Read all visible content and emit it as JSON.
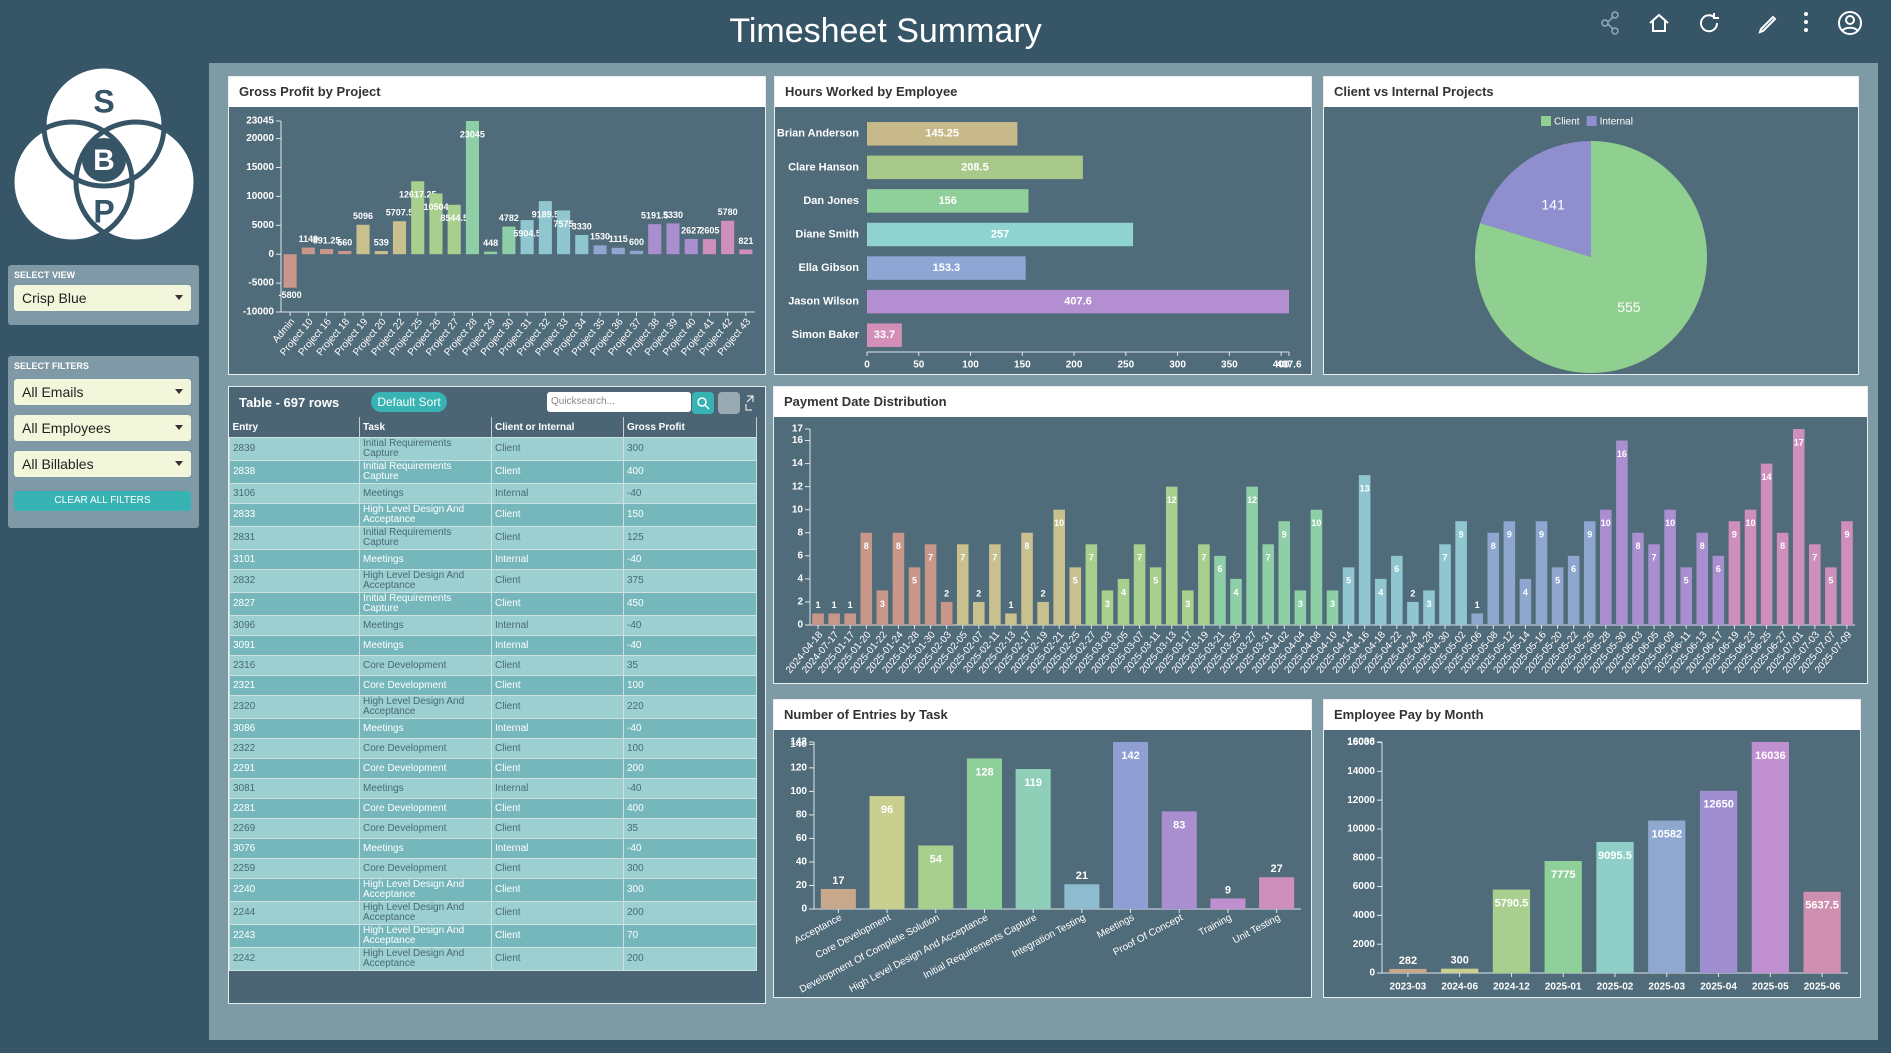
{
  "header": {
    "title": "Timesheet Summary"
  },
  "sidebar": {
    "logo": [
      "S",
      "B",
      "P"
    ],
    "view_label": "SELECT VIEW",
    "view": "Crisp Blue",
    "filters_label": "SELECT FILTERS",
    "filters": [
      "All Emails",
      "All Employees",
      "All Billables"
    ],
    "clear": "CLEAR ALL FILTERS"
  },
  "chart_data": [
    {
      "type": "bar",
      "title": "Gross Profit by Project",
      "categories": [
        "Admin",
        "Project 10",
        "Project 16",
        "Project 18",
        "Project 19",
        "Project 20",
        "Project 22",
        "Project 25",
        "Project 26",
        "Project 27",
        "Project 28",
        "Project 29",
        "Project 30",
        "Project 31",
        "Project 32",
        "Project 33",
        "Project 34",
        "Project 35",
        "Project 36",
        "Project 37",
        "Project 38",
        "Project 39",
        "Project 40",
        "Project 41",
        "Project 42",
        "Project 43"
      ],
      "values": [
        -5800,
        1149,
        891.25,
        560,
        5096,
        539,
        5707.5,
        12617.25,
        10504,
        8544.5,
        23045,
        448,
        4782,
        5904.5,
        9189.5,
        7575,
        3330,
        1530,
        1115,
        600,
        5191.5,
        5330,
        2627,
        2605,
        5780,
        821
      ],
      "palette": [
        "#c9968a",
        "#c9c08f",
        "#a9cf8f",
        "#8fcfa8",
        "#8fc6cf",
        "#8fa6cf",
        "#a98fcf",
        "#cf8fbd"
      ],
      "ylim": [
        -10000,
        23045
      ],
      "yticks": [
        -10000,
        -5000,
        0,
        5000,
        10000,
        15000,
        20000,
        23045
      ]
    },
    {
      "type": "hbar",
      "title": "Hours Worked by Employee",
      "categories": [
        "Brian Anderson",
        "Clare Hanson",
        "Dan Jones",
        "Diane Smith",
        "Ella Gibson",
        "Jason Wilson",
        "Simon Baker"
      ],
      "values": [
        145.25,
        208.5,
        156,
        257,
        153.3,
        407.6,
        33.7
      ],
      "colors": [
        "#c8b98a",
        "#a9c98a",
        "#8fcf9a",
        "#8fd3d1",
        "#8ea6d4",
        "#b38fd1",
        "#d48fb8"
      ],
      "xlim": [
        0,
        407.6
      ],
      "xticks": [
        0,
        50,
        100,
        150,
        200,
        250,
        300,
        350,
        400,
        407.6
      ]
    },
    {
      "type": "pie",
      "title": "Client vs Internal Projects",
      "categories": [
        "Client",
        "Internal"
      ],
      "values": [
        555,
        141
      ],
      "colors": [
        "#8fcf8f",
        "#8f8fcf"
      ]
    },
    {
      "type": "bar",
      "title": "Payment Date Distribution",
      "categories": [
        "2024-04-18",
        "2024-07-17",
        "2025-01-17",
        "2025-01-20",
        "2025-01-22",
        "2025-01-24",
        "2025-01-28",
        "2025-01-30",
        "2025-02-03",
        "2025-02-05",
        "2025-02-07",
        "2025-02-11",
        "2025-02-13",
        "2025-02-17",
        "2025-02-19",
        "2025-02-21",
        "2025-02-25",
        "2025-02-27",
        "2025-03-03",
        "2025-03-05",
        "2025-03-07",
        "2025-03-11",
        "2025-03-13",
        "2025-03-17",
        "2025-03-19",
        "2025-03-21",
        "2025-03-25",
        "2025-03-27",
        "2025-03-31",
        "2025-04-02",
        "2025-04-04",
        "2025-04-08",
        "2025-04-10",
        "2025-04-14",
        "2025-04-16",
        "2025-04-18",
        "2025-04-22",
        "2025-04-24",
        "2025-04-28",
        "2025-04-30",
        "2025-05-02",
        "2025-05-06",
        "2025-05-08",
        "2025-05-12",
        "2025-05-14",
        "2025-05-16",
        "2025-05-20",
        "2025-05-22",
        "2025-05-26",
        "2025-05-28",
        "2025-05-30",
        "2025-06-03",
        "2025-06-05",
        "2025-06-09",
        "2025-06-11",
        "2025-06-13",
        "2025-06-17",
        "2025-06-19",
        "2025-06-23",
        "2025-06-25",
        "2025-06-27",
        "2025-07-01",
        "2025-07-03",
        "2025-07-07",
        "2025-07-09"
      ],
      "values": [
        1,
        1,
        1,
        8,
        3,
        8,
        5,
        7,
        2,
        7,
        2,
        7,
        1,
        8,
        2,
        10,
        5,
        7,
        3,
        4,
        7,
        5,
        12,
        3,
        7,
        6,
        4,
        12,
        7,
        9,
        3,
        10,
        3,
        5,
        13,
        4,
        6,
        2,
        3,
        7,
        9,
        1,
        8,
        9,
        4,
        9,
        5,
        6,
        9,
        10,
        16,
        8,
        7,
        10,
        5,
        8,
        6,
        9,
        10,
        14,
        8,
        17,
        7,
        5,
        9
      ],
      "palette": [
        "#c9968a",
        "#c9c08f",
        "#a9cf8f",
        "#8fcfa8",
        "#8fc6cf",
        "#8fa6cf",
        "#a98fcf",
        "#cf8fbd"
      ],
      "ylim": [
        0,
        17
      ],
      "yticks": [
        0,
        2,
        4,
        6,
        8,
        10,
        12,
        14,
        16,
        17
      ]
    },
    {
      "type": "bar",
      "title": "Number of Entries by Task",
      "categories": [
        "Acceptance",
        "Core Development",
        "Development Of Complete Solution",
        "High Level Design And Acceptance",
        "Initial Requirements Capture",
        "Integration Testing",
        "Meetings",
        "Proof Of Concept",
        "Training",
        "Unit Testing"
      ],
      "values": [
        17,
        96,
        54,
        128,
        119,
        21,
        142,
        83,
        9,
        27
      ],
      "colors": [
        "#c8a88a",
        "#c8cf8f",
        "#a9cf8f",
        "#8fcf9a",
        "#8fcfb8",
        "#8fbccf",
        "#8f9fd4",
        "#a98fcf",
        "#c08fcf",
        "#cf8fbd"
      ],
      "ylim": [
        0,
        142
      ],
      "yticks": [
        0,
        20,
        40,
        60,
        80,
        100,
        120,
        140,
        142
      ]
    },
    {
      "type": "bar",
      "title": "Employee Pay by Month",
      "categories": [
        "2023-03",
        "2024-06",
        "2024-12",
        "2025-01",
        "2025-02",
        "2025-03",
        "2025-04",
        "2025-05",
        "2025-06"
      ],
      "values": [
        282,
        300,
        5790.5,
        7775,
        9095.5,
        10582,
        12650,
        16036,
        5637.5
      ],
      "colors": [
        "#c8a88a",
        "#c8cf8f",
        "#a9cf8f",
        "#8fcf9a",
        "#8fcfc8",
        "#8fa8cf",
        "#a08fd0",
        "#c08fcf",
        "#cf8fb0"
      ],
      "ylim": [
        0,
        16036
      ],
      "yticks": [
        0,
        2000,
        4000,
        6000,
        8000,
        10000,
        12000,
        14000,
        16000,
        16036
      ]
    }
  ],
  "table": {
    "title": "Table - 697 rows",
    "sort_button": "Default Sort",
    "search_placeholder": "Quicksearch...",
    "columns": [
      "Entry",
      "Task",
      "Client or Internal",
      "Gross Profit"
    ],
    "rows": [
      [
        2839,
        "Initial Requirements Capture",
        "Client",
        300
      ],
      [
        2838,
        "Initial Requirements Capture",
        "Client",
        400
      ],
      [
        3106,
        "Meetings",
        "Internal",
        -40
      ],
      [
        2833,
        "High Level Design And Acceptance",
        "Client",
        150
      ],
      [
        2831,
        "Initial Requirements Capture",
        "Client",
        125
      ],
      [
        3101,
        "Meetings",
        "Internal",
        -40
      ],
      [
        2832,
        "High Level Design And Acceptance",
        "Client",
        375
      ],
      [
        2827,
        "Initial Requirements Capture",
        "Client",
        450
      ],
      [
        3096,
        "Meetings",
        "Internal",
        -40
      ],
      [
        3091,
        "Meetings",
        "Internal",
        -40
      ],
      [
        2316,
        "Core Development",
        "Client",
        35
      ],
      [
        2321,
        "Core Development",
        "Client",
        100
      ],
      [
        2320,
        "High Level Design And Acceptance",
        "Client",
        220
      ],
      [
        3086,
        "Meetings",
        "Internal",
        -40
      ],
      [
        2322,
        "Core Development",
        "Client",
        100
      ],
      [
        2291,
        "Core Development",
        "Client",
        200
      ],
      [
        3081,
        "Meetings",
        "Internal",
        -40
      ],
      [
        2281,
        "Core Development",
        "Client",
        400
      ],
      [
        2269,
        "Core Development",
        "Client",
        35
      ],
      [
        3076,
        "Meetings",
        "Internal",
        -40
      ],
      [
        2259,
        "Core Development",
        "Client",
        300
      ],
      [
        2240,
        "High Level Design And Acceptance",
        "Client",
        300
      ],
      [
        2244,
        "High Level Design And Acceptance",
        "Client",
        200
      ],
      [
        2243,
        "High Level Design And Acceptance",
        "Client",
        70
      ],
      [
        2242,
        "High Level Design And Acceptance",
        "Client",
        200
      ]
    ]
  }
}
